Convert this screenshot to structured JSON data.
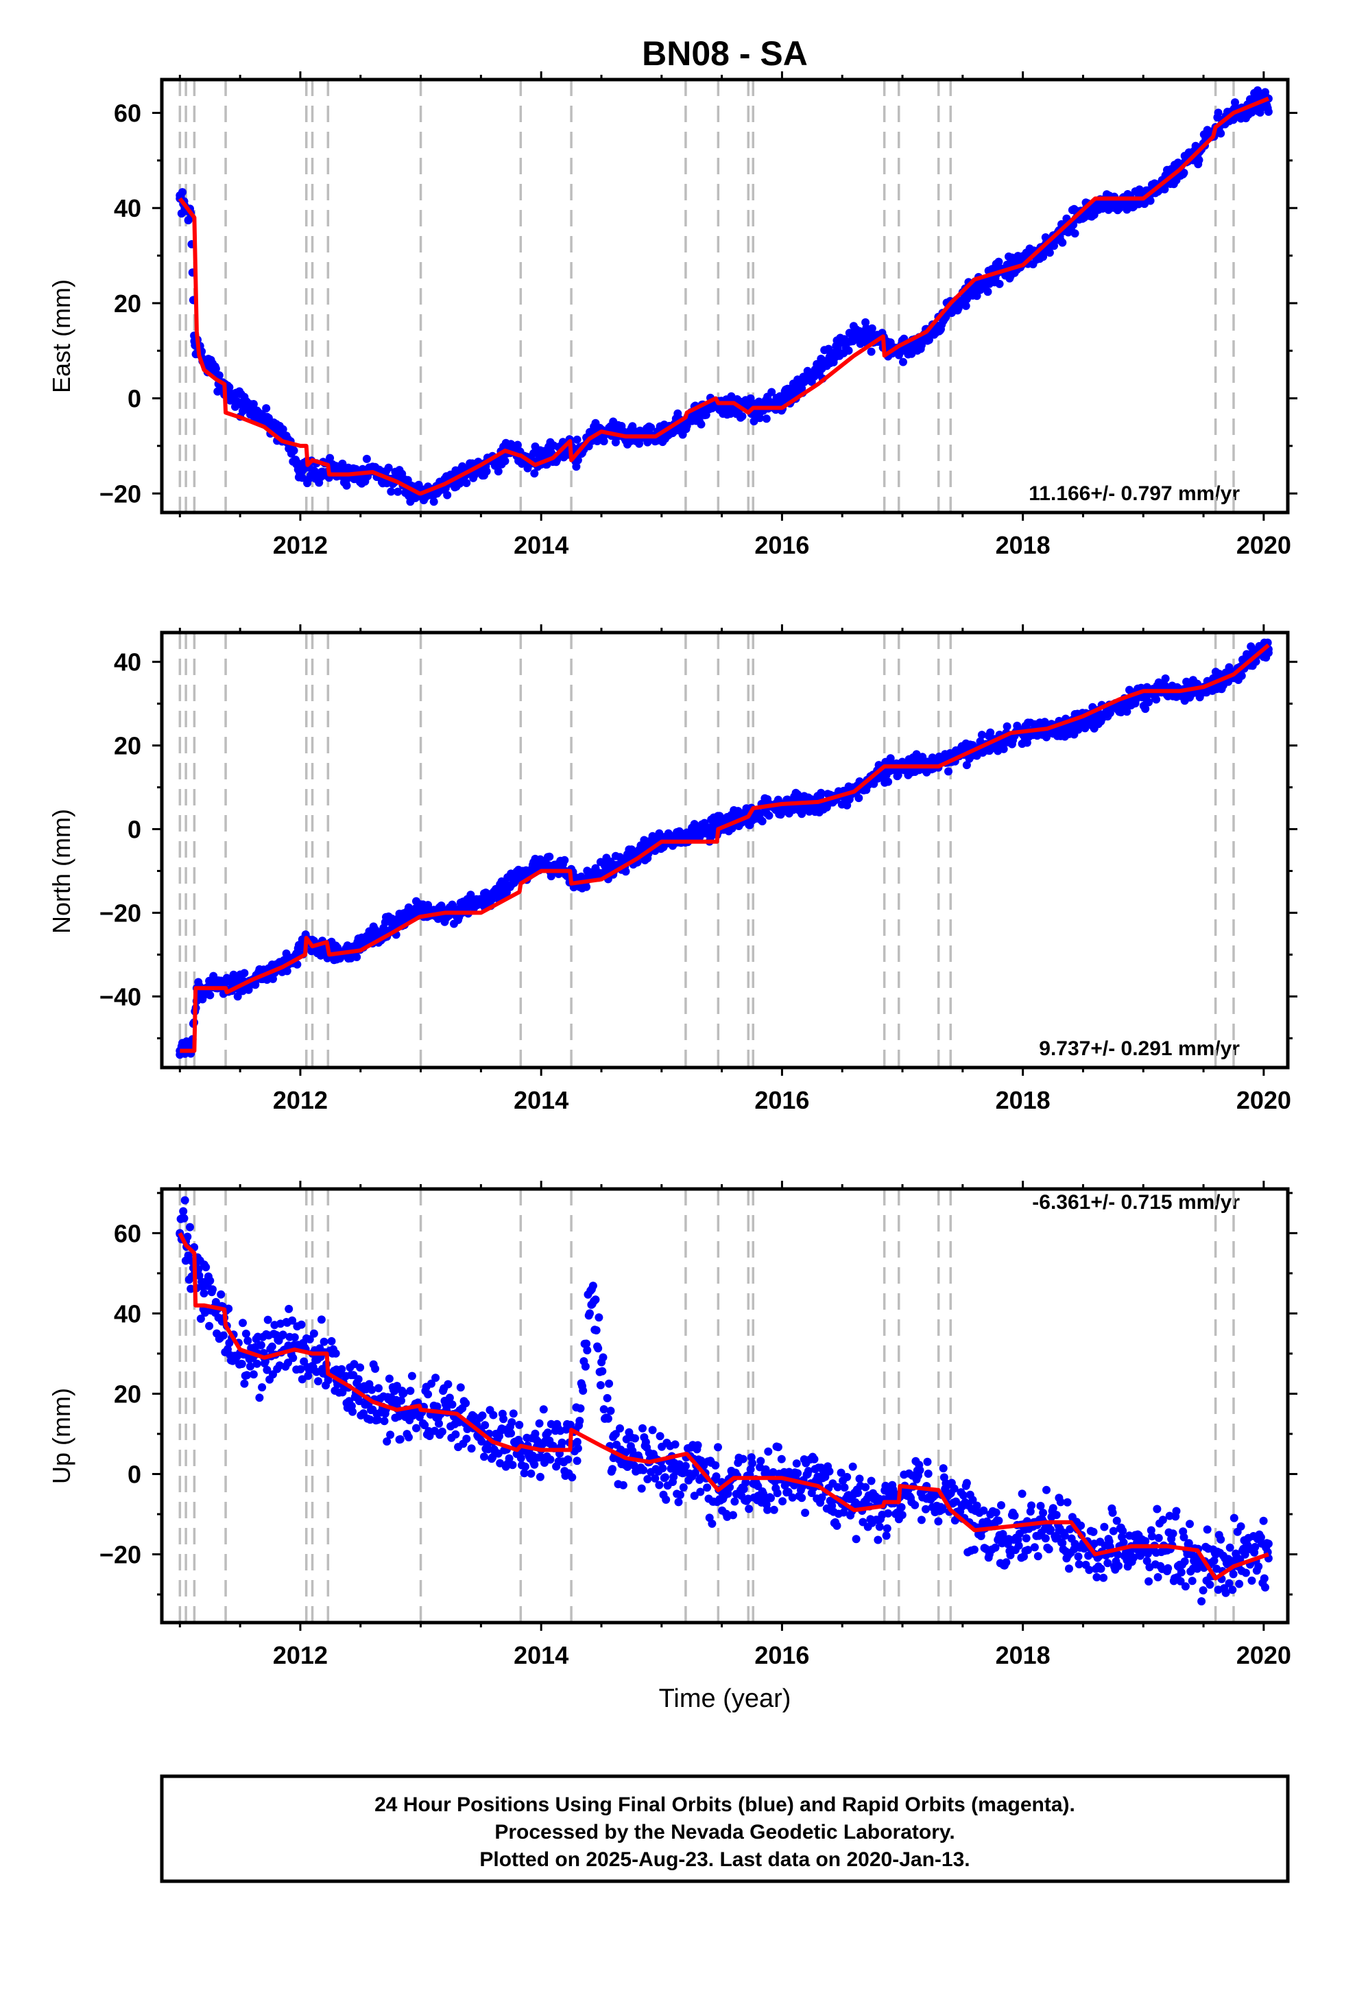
{
  "figure": {
    "title": "BN08 - SA",
    "xlabel": "Time (year)",
    "footer": [
      "24 Hour Positions Using Final Orbits (blue) and Rapid Orbits (magenta).",
      "Processed by the Nevada Geodetic Laboratory.",
      "Plotted on 2025-Aug-23. Last data on 2020-Jan-13."
    ]
  },
  "colors": {
    "points": "#0000ff",
    "model": "#ff0000",
    "events": "#bdbdbd",
    "frame": "#000000"
  },
  "chart_data": [
    {
      "type": "scatter",
      "component": "east",
      "ylabel": "East (mm)",
      "rate_text": "11.166+/- 0.797 mm/yr",
      "rate_position": "bottom-right",
      "xlim": [
        2010.85,
        2020.2
      ],
      "ylim": [
        -24,
        67
      ],
      "xticks": [
        2012,
        2014,
        2016,
        2018,
        2020
      ],
      "yticks": [
        -20,
        0,
        20,
        40,
        60
      ],
      "event_lines": [
        2011.0,
        2011.05,
        2011.12,
        2011.38,
        2012.05,
        2012.1,
        2012.23,
        2013.0,
        2013.83,
        2014.25,
        2015.2,
        2015.47,
        2015.72,
        2015.76,
        2016.85,
        2016.97,
        2017.3,
        2017.4,
        2019.6,
        2019.75
      ],
      "series": [
        {
          "role": "daily positions",
          "color": "#0000ff",
          "x": [
            2011.0,
            2011.04,
            2011.09,
            2011.12,
            2011.2,
            2011.3,
            2011.38,
            2011.5,
            2011.7,
            2011.9,
            2012.0,
            2012.1,
            2012.25,
            2012.4,
            2012.6,
            2012.75,
            2012.9,
            2013.0,
            2013.2,
            2013.4,
            2013.6,
            2013.75,
            2013.9,
            2014.1,
            2014.24,
            2014.28,
            2014.45,
            2014.6,
            2014.8,
            2015.0,
            2015.2,
            2015.45,
            2015.6,
            2015.8,
            2016.0,
            2016.2,
            2016.4,
            2016.6,
            2016.8,
            2016.87,
            2017.0,
            2017.2,
            2017.45,
            2017.7,
            2017.9,
            2018.1,
            2018.3,
            2018.5,
            2018.65,
            2018.85,
            2019.05,
            2019.25,
            2019.45,
            2019.6,
            2019.7,
            2019.9,
            2020.04
          ],
          "y": [
            42,
            40,
            39,
            12,
            8,
            5,
            2,
            -1,
            -4,
            -9,
            -15,
            -16,
            -15,
            -16,
            -15,
            -17,
            -19,
            -20,
            -18,
            -15,
            -13,
            -11,
            -13,
            -12,
            -10,
            -12,
            -7,
            -7,
            -8,
            -7,
            -5,
            -1,
            -2,
            -2,
            -1,
            4,
            9,
            13,
            13,
            11,
            10,
            13,
            20,
            25,
            27,
            30,
            34,
            39,
            41,
            41,
            43,
            47,
            51,
            57,
            59,
            61,
            63
          ]
        },
        {
          "role": "model",
          "color": "#ff0000",
          "x": [
            2011.0,
            2011.03,
            2011.06,
            2011.09,
            2011.12,
            2011.14,
            2011.16,
            2011.2,
            2011.3,
            2011.37,
            2011.38,
            2011.5,
            2011.7,
            2011.85,
            2012.0,
            2012.05,
            2012.06,
            2012.1,
            2012.23,
            2012.24,
            2012.4,
            2012.6,
            2012.8,
            2012.99,
            2013.0,
            2013.2,
            2013.5,
            2013.7,
            2013.82,
            2013.83,
            2013.95,
            2014.1,
            2014.24,
            2014.25,
            2014.4,
            2014.5,
            2014.7,
            2014.95,
            2015.2,
            2015.21,
            2015.45,
            2015.47,
            2015.6,
            2015.72,
            2015.76,
            2016.0,
            2016.3,
            2016.6,
            2016.84,
            2016.85,
            2016.97,
            2017.2,
            2017.4,
            2017.6,
            2017.8,
            2018.0,
            2018.3,
            2018.6,
            2018.8,
            2019.0,
            2019.3,
            2019.58,
            2019.6,
            2019.75,
            2020.04
          ],
          "y": [
            42,
            41,
            40,
            39,
            38,
            14,
            9,
            6,
            4,
            3,
            -3,
            -4,
            -6,
            -9,
            -10,
            -10,
            -14,
            -13,
            -14,
            -16,
            -16,
            -15.5,
            -17.5,
            -20,
            -20,
            -18,
            -14,
            -11,
            -12,
            -12,
            -14,
            -12.5,
            -9,
            -13,
            -8.5,
            -7,
            -8,
            -8,
            -4,
            -3,
            0,
            -1,
            -1,
            -3,
            -2,
            -2,
            3,
            9,
            13,
            9,
            11,
            14,
            20,
            25,
            26.5,
            28,
            35,
            42,
            42,
            42,
            48,
            55,
            57,
            60,
            63
          ]
        }
      ]
    },
    {
      "type": "scatter",
      "component": "north",
      "ylabel": "North (mm)",
      "rate_text": "9.737+/- 0.291 mm/yr",
      "rate_position": "bottom-right",
      "xlim": [
        2010.85,
        2020.2
      ],
      "ylim": [
        -57,
        47
      ],
      "xticks": [
        2012,
        2014,
        2016,
        2018,
        2020
      ],
      "yticks": [
        -40,
        -20,
        0,
        20,
        40
      ],
      "event_lines": [
        2011.0,
        2011.05,
        2011.12,
        2011.38,
        2012.05,
        2012.1,
        2012.23,
        2013.0,
        2013.83,
        2014.25,
        2015.2,
        2015.47,
        2015.72,
        2015.76,
        2016.85,
        2016.97,
        2017.3,
        2017.4,
        2019.6,
        2019.75
      ],
      "series": [
        {
          "role": "daily positions",
          "color": "#0000ff",
          "x": [
            2011.0,
            2011.05,
            2011.1,
            2011.14,
            2011.3,
            2011.5,
            2011.7,
            2011.9,
            2012.05,
            2012.2,
            2012.4,
            2012.6,
            2012.8,
            2013.0,
            2013.3,
            2013.6,
            2013.8,
            2014.0,
            2014.2,
            2014.3,
            2014.6,
            2014.9,
            2015.2,
            2015.5,
            2015.8,
            2016.0,
            2016.3,
            2016.6,
            2016.85,
            2017.1,
            2017.4,
            2017.7,
            2018.0,
            2018.3,
            2018.6,
            2018.9,
            2019.2,
            2019.5,
            2019.7,
            2019.9,
            2020.04
          ],
          "y": [
            -53,
            -53,
            -52,
            -38,
            -38,
            -37,
            -35,
            -32,
            -27,
            -29,
            -29,
            -26,
            -22,
            -19,
            -20,
            -16,
            -12,
            -8,
            -10,
            -13,
            -9,
            -4,
            -2,
            1,
            4,
            6,
            6,
            9,
            14,
            15,
            17,
            20,
            23,
            24,
            27,
            31,
            33,
            34,
            36,
            41,
            43
          ]
        },
        {
          "role": "model",
          "color": "#ff0000",
          "x": [
            2011.0,
            2011.12,
            2011.13,
            2011.38,
            2011.39,
            2011.6,
            2011.85,
            2012.04,
            2012.05,
            2012.1,
            2012.22,
            2012.24,
            2012.5,
            2012.75,
            2012.99,
            2013.2,
            2013.5,
            2013.82,
            2013.83,
            2014.0,
            2014.24,
            2014.25,
            2014.5,
            2014.8,
            2015.0,
            2015.2,
            2015.46,
            2015.47,
            2015.72,
            2015.76,
            2016.0,
            2016.3,
            2016.6,
            2016.85,
            2017.0,
            2017.3,
            2017.6,
            2017.9,
            2018.2,
            2018.5,
            2018.8,
            2019.0,
            2019.3,
            2019.5,
            2019.75,
            2020.04
          ],
          "y": [
            -53,
            -53,
            -38,
            -38,
            -39,
            -36,
            -33,
            -30,
            -26,
            -28,
            -27,
            -30,
            -29,
            -25,
            -21,
            -20,
            -20,
            -15,
            -13,
            -10,
            -10,
            -13,
            -12,
            -7,
            -3,
            -3,
            -3,
            0,
            3,
            5,
            6,
            6.5,
            9,
            15,
            15,
            15,
            19,
            23,
            24,
            27,
            31,
            33,
            33,
            34,
            37,
            44
          ]
        }
      ]
    },
    {
      "type": "scatter",
      "component": "up",
      "ylabel": "Up (mm)",
      "rate_text": "-6.361+/- 0.715 mm/yr",
      "rate_position": "top-right",
      "xlim": [
        2010.85,
        2020.2
      ],
      "ylim": [
        -37,
        71
      ],
      "xticks": [
        2012,
        2014,
        2016,
        2018,
        2020
      ],
      "yticks": [
        -20,
        0,
        20,
        40,
        60
      ],
      "event_lines": [
        2011.0,
        2011.05,
        2011.12,
        2011.38,
        2012.05,
        2012.1,
        2012.23,
        2013.0,
        2013.83,
        2014.25,
        2015.2,
        2015.47,
        2015.72,
        2015.76,
        2016.85,
        2016.97,
        2017.3,
        2017.4,
        2019.6,
        2019.75
      ],
      "series": [
        {
          "role": "daily positions",
          "color": "#0000ff",
          "x": [
            2011.0,
            2011.05,
            2011.1,
            2011.2,
            2011.35,
            2011.5,
            2011.7,
            2011.9,
            2012.1,
            2012.3,
            2012.5,
            2012.8,
            2013.0,
            2013.3,
            2013.6,
            2013.9,
            2014.1,
            2014.3,
            2014.42,
            2014.6,
            2014.9,
            2015.2,
            2015.5,
            2015.8,
            2016.0,
            2016.3,
            2016.6,
            2016.9,
            2017.2,
            2017.5,
            2017.8,
            2018.0,
            2018.3,
            2018.6,
            2018.9,
            2019.2,
            2019.5,
            2019.8,
            2020.04
          ],
          "y": [
            60,
            58,
            53,
            45,
            38,
            30,
            29,
            32,
            30,
            26,
            20,
            17,
            16,
            14,
            8,
            6,
            7,
            8,
            46,
            4,
            3,
            2,
            -2,
            -3,
            -1,
            -2,
            -8,
            -6,
            -3,
            -8,
            -16,
            -13,
            -14,
            -20,
            -18,
            -19,
            -22,
            -22,
            -21
          ]
        },
        {
          "role": "model",
          "color": "#ff0000",
          "x": [
            2011.0,
            2011.05,
            2011.12,
            2011.13,
            2011.2,
            2011.37,
            2011.38,
            2011.5,
            2011.7,
            2011.95,
            2012.1,
            2012.22,
            2012.23,
            2012.4,
            2012.6,
            2012.8,
            2012.99,
            2013.0,
            2013.3,
            2013.6,
            2013.8,
            2013.83,
            2014.0,
            2014.24,
            2014.25,
            2014.5,
            2014.7,
            2014.9,
            2015.2,
            2015.21,
            2015.47,
            2015.6,
            2015.75,
            2016.0,
            2016.3,
            2016.6,
            2016.84,
            2016.85,
            2016.97,
            2016.98,
            2017.3,
            2017.4,
            2017.6,
            2017.9,
            2018.2,
            2018.4,
            2018.6,
            2018.9,
            2019.2,
            2019.45,
            2019.6,
            2019.75,
            2020.04
          ],
          "y": [
            60,
            57,
            55,
            42,
            42,
            41,
            37,
            31,
            29,
            31,
            30,
            30,
            25,
            22,
            18,
            16,
            17,
            16,
            15,
            8,
            6,
            7,
            6,
            6,
            11,
            7,
            4,
            3,
            5,
            5,
            -4,
            -1,
            -1,
            -1,
            -3,
            -9,
            -8,
            -7,
            -7,
            -3,
            -4,
            -9,
            -14,
            -13,
            -12,
            -12,
            -20,
            -18,
            -18,
            -19,
            -26,
            -23,
            -20
          ]
        }
      ]
    }
  ]
}
